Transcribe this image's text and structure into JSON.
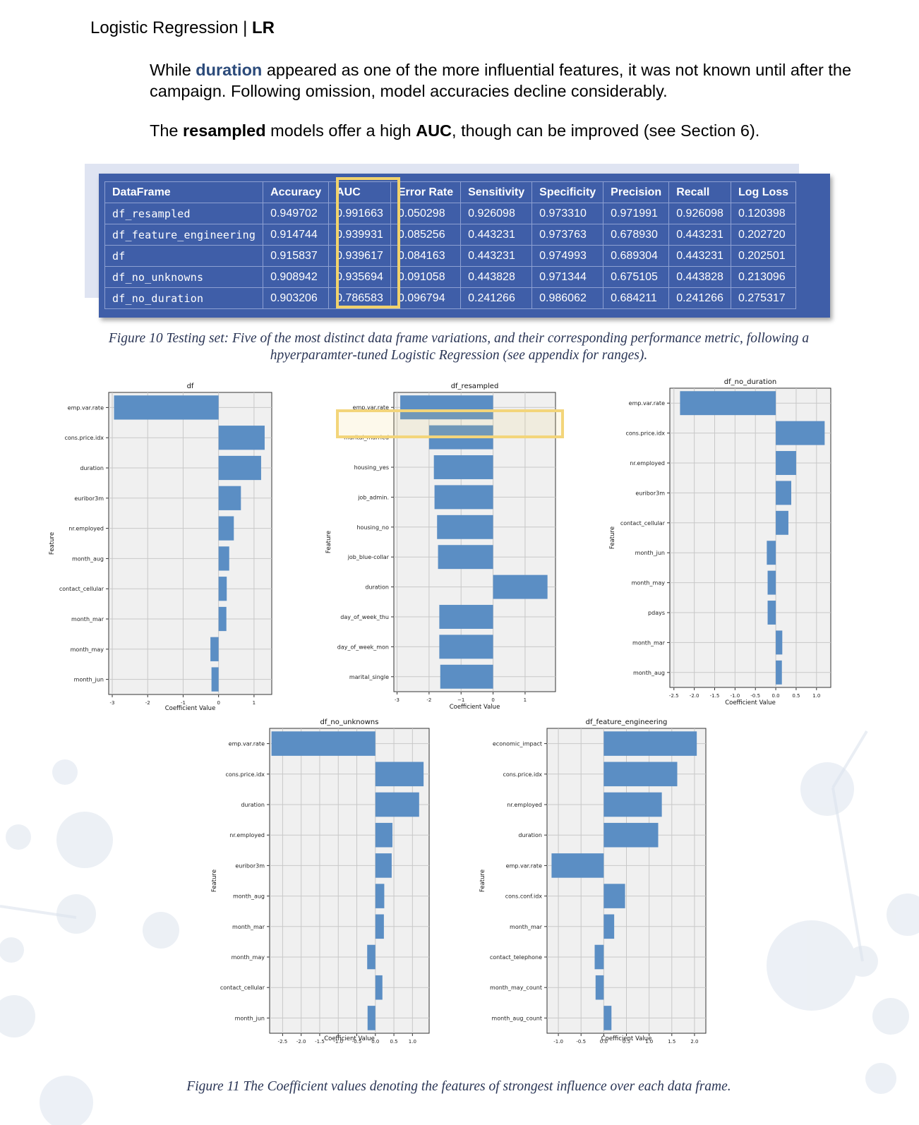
{
  "header": {
    "title": "Logistic Regression | ",
    "abbr": "LR"
  },
  "intro": {
    "p1_before": "While ",
    "p1_keyword": "duration",
    "p1_after": " appeared as one of the more influential features, it was not known until after the campaign. Following omission, model accuracies decline considerably.",
    "p2_before": "The ",
    "p2_bold1": "resampled",
    "p2_mid": " models offer a high ",
    "p2_bold2": "AUC",
    "p2_after": ", though can be improved (see Section 6)."
  },
  "colors": {
    "table_bg": "#3f5ea8",
    "highlight": "#f1d26b",
    "bar": "#5b8ec4",
    "plot_bg": "#f0f0f0"
  },
  "metrics_table": {
    "columns": [
      "DataFrame",
      "Accuracy",
      "AUC",
      "Error Rate",
      "Sensitivity",
      "Specificity",
      "Precision",
      "Recall",
      "Log Loss"
    ],
    "rows": [
      [
        "df_resampled",
        "0.949702",
        "0.991663",
        "0.050298",
        "0.926098",
        "0.973310",
        "0.971991",
        "0.926098",
        "0.120398"
      ],
      [
        "df_feature_engineering",
        "0.914744",
        "0.939931",
        "0.085256",
        "0.443231",
        "0.973763",
        "0.678930",
        "0.443231",
        "0.202720"
      ],
      [
        "df",
        "0.915837",
        "0.939617",
        "0.084163",
        "0.443231",
        "0.974993",
        "0.689304",
        "0.443231",
        "0.202501"
      ],
      [
        "df_no_unknowns",
        "0.908942",
        "0.935694",
        "0.091058",
        "0.443828",
        "0.971344",
        "0.675105",
        "0.443828",
        "0.213096"
      ],
      [
        "df_no_duration",
        "0.903206",
        "0.786583",
        "0.096794",
        "0.241266",
        "0.986062",
        "0.684211",
        "0.241266",
        "0.275317"
      ]
    ]
  },
  "figure10_caption": "Figure 10 Testing set: Five of the most distinct data frame variations, and their corresponding performance metric, following a hpyerparamter-tuned Logistic Regression (see appendix for ranges).",
  "figure11_caption": "Figure 11 The Coefficient values denoting the features of strongest influence over each data frame.",
  "chart_data": [
    {
      "type": "bar",
      "orientation": "horizontal",
      "title": "df",
      "xlabel": "Coefficient Value",
      "ylabel": "Feature",
      "xlim": [
        -3.1,
        1.5
      ],
      "xticks": [
        -3,
        -2,
        -1,
        0,
        1
      ],
      "xtick_labels": [
        "-3",
        "-2",
        "-1",
        "0",
        "1"
      ],
      "categories": [
        "emp.var.rate",
        "cons.price.idx",
        "duration",
        "euribor3m",
        "nr.employed",
        "month_aug",
        "contact_cellular",
        "month_mar",
        "month_may",
        "month_jun"
      ],
      "values": [
        -2.95,
        1.3,
        1.2,
        0.63,
        0.43,
        0.3,
        0.23,
        0.22,
        -0.23,
        -0.2
      ]
    },
    {
      "type": "bar",
      "orientation": "horizontal",
      "title": "df_resampled",
      "xlabel": "Coefficient Value",
      "ylabel": "Feature",
      "xlim": [
        -3.1,
        1.95
      ],
      "xticks": [
        -3,
        -2,
        -1,
        0,
        1
      ],
      "xtick_labels": [
        "-3",
        "-2",
        "−1",
        "0",
        "1"
      ],
      "categories": [
        "emp.var.rate",
        "marital_married",
        "housing_yes",
        "job_admin.",
        "housing_no",
        "job_blue-collar",
        "duration",
        "day_of_week_thu",
        "day_of_week_mon",
        "marital_single"
      ],
      "values": [
        -2.9,
        -2.0,
        -1.85,
        -1.83,
        -1.75,
        -1.72,
        1.7,
        -1.68,
        -1.68,
        -1.65
      ],
      "highlighted": "emp.var.rate"
    },
    {
      "type": "bar",
      "orientation": "horizontal",
      "title": "df_no_duration",
      "xlabel": "Coefficient Value",
      "ylabel": "Feature",
      "xlim": [
        -2.6,
        1.35
      ],
      "xticks": [
        -2.5,
        -2.0,
        -1.5,
        -1.0,
        -0.5,
        0.0,
        0.5,
        1.0
      ],
      "xtick_labels": [
        "-2.5",
        "-2.0",
        "-1.5",
        "-1.0",
        "-0.5",
        "0.0",
        "0.5",
        "1.0"
      ],
      "categories": [
        "emp.var.rate",
        "cons.price.idx",
        "nr.employed",
        "euribor3m",
        "contact_cellular",
        "month_jun",
        "month_may",
        "pdays",
        "month_mar",
        "month_aug"
      ],
      "values": [
        -2.35,
        1.2,
        0.5,
        0.38,
        0.31,
        -0.22,
        -0.2,
        -0.2,
        0.16,
        0.15
      ]
    },
    {
      "type": "bar",
      "orientation": "horizontal",
      "title": "df_no_unknowns",
      "xlabel": "Coefficient Value",
      "ylabel": "Feature",
      "xlim": [
        -2.85,
        1.45
      ],
      "xticks": [
        -2.5,
        -2.0,
        -1.5,
        -1.0,
        -0.5,
        0.0,
        0.5,
        1.0
      ],
      "xtick_labels": [
        "-2.5",
        "-2.0",
        "-1.5",
        "-1.0",
        "-0.5",
        "0.0",
        "0.5",
        "1.0"
      ],
      "categories": [
        "emp.var.rate",
        "cons.price.idx",
        "duration",
        "nr.employed",
        "euribor3m",
        "month_aug",
        "month_mar",
        "month_may",
        "contact_cellular",
        "month_jun"
      ],
      "values": [
        -2.8,
        1.3,
        1.18,
        0.46,
        0.44,
        0.24,
        0.23,
        -0.22,
        0.19,
        -0.21
      ]
    },
    {
      "type": "bar",
      "orientation": "horizontal",
      "title": "df_feature_engineering",
      "xlabel": "Coefficient Value",
      "ylabel": "Feature",
      "xlim": [
        -1.25,
        2.25
      ],
      "xticks": [
        -1.0,
        -0.5,
        0.0,
        0.5,
        1.0,
        1.5,
        2.0
      ],
      "xtick_labels": [
        "-1.0",
        "-0.5",
        "0.0",
        "0.5",
        "1.0",
        "1.5",
        "2.0"
      ],
      "categories": [
        "economic_impact",
        "cons.price.idx",
        "nr.employed",
        "duration",
        "emp.var.rate",
        "cons.conf.idx",
        "month_mar",
        "contact_telephone",
        "month_may_count",
        "month_aug_count"
      ],
      "values": [
        2.05,
        1.62,
        1.28,
        1.2,
        -1.15,
        0.47,
        0.23,
        -0.2,
        -0.18,
        0.17
      ]
    }
  ]
}
